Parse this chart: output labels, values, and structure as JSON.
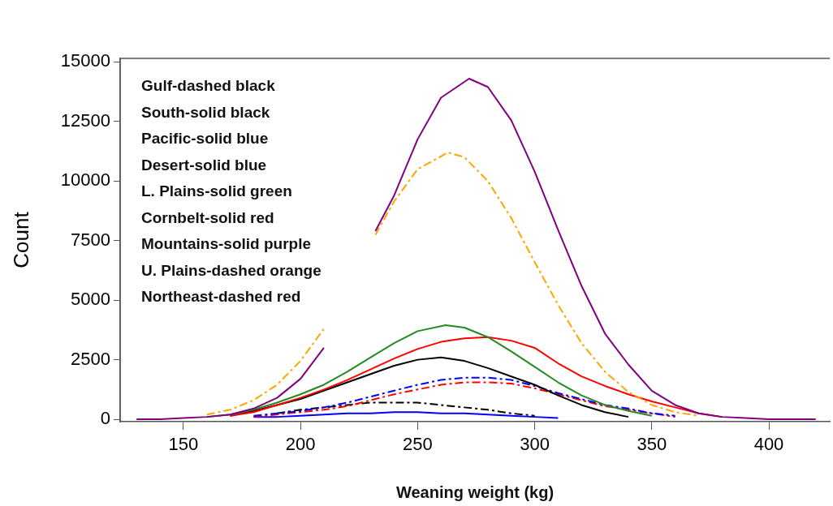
{
  "chart_data": {
    "type": "line",
    "xlabel": "Weaning weight (kg)",
    "ylabel": "Count",
    "series": [
      {
        "color": "#800080",
        "line_style": "solid",
        "x": [
          130,
          140,
          150,
          160,
          170,
          180,
          190,
          200,
          210,
          220,
          232,
          240,
          250,
          260,
          272,
          280,
          290,
          300,
          310,
          320,
          330,
          340,
          350,
          360,
          370,
          380,
          390,
          400,
          410,
          420
        ],
        "values": [
          0,
          0,
          50,
          100,
          200,
          450,
          900,
          1700,
          3000,
          null,
          7900,
          9400,
          11750,
          13500,
          14300,
          13950,
          12550,
          10400,
          7950,
          5600,
          3600,
          2300,
          1200,
          600,
          250,
          100,
          50,
          0,
          0,
          0
        ]
      },
      {
        "color": "#ffa500",
        "line_style": "dashed",
        "x": [
          160,
          170,
          180,
          190,
          200,
          210,
          220,
          232,
          240,
          250,
          263,
          270,
          280,
          290,
          300,
          310,
          320,
          330,
          340,
          350,
          360,
          370
        ],
        "values": [
          200,
          400,
          800,
          1450,
          2450,
          3800,
          null,
          7750,
          9150,
          10500,
          11200,
          11000,
          10000,
          8450,
          6600,
          4800,
          3200,
          2000,
          1150,
          600,
          300,
          150
        ]
      },
      {
        "color": "#228b22",
        "line_style": "solid",
        "x": [
          160,
          170,
          180,
          190,
          200,
          210,
          220,
          230,
          240,
          250,
          262,
          270,
          280,
          290,
          300,
          310,
          320,
          330,
          340,
          350
        ],
        "values": [
          100,
          200,
          400,
          700,
          1050,
          1450,
          2000,
          2600,
          3200,
          3700,
          3950,
          3850,
          3450,
          2850,
          2200,
          1550,
          1000,
          600,
          350,
          150
        ]
      },
      {
        "color": "#ff0000",
        "line_style": "solid",
        "x": [
          170,
          180,
          190,
          200,
          210,
          220,
          230,
          240,
          250,
          260,
          270,
          280,
          290,
          300,
          310,
          320,
          330,
          340,
          350,
          360,
          370,
          380
        ],
        "values": [
          150,
          300,
          600,
          900,
          1250,
          1650,
          2100,
          2550,
          2950,
          3250,
          3400,
          3450,
          3300,
          3000,
          2350,
          1800,
          1400,
          1050,
          750,
          500,
          250,
          100
        ]
      },
      {
        "color": "#000000",
        "line_style": "solid",
        "x": [
          170,
          180,
          190,
          200,
          210,
          220,
          230,
          240,
          250,
          260,
          270,
          280,
          290,
          300,
          310,
          320,
          330,
          340
        ],
        "values": [
          150,
          350,
          600,
          850,
          1200,
          1550,
          1900,
          2250,
          2500,
          2600,
          2450,
          2150,
          1800,
          1450,
          1000,
          600,
          300,
          100
        ]
      },
      {
        "color": "#0000ff",
        "line_style": "dashed",
        "x": [
          180,
          190,
          200,
          210,
          220,
          230,
          240,
          250,
          260,
          270,
          280,
          290,
          300,
          310,
          320,
          330,
          340,
          350,
          360
        ],
        "values": [
          150,
          250,
          350,
          500,
          700,
          950,
          1200,
          1450,
          1650,
          1750,
          1750,
          1650,
          1400,
          1100,
          850,
          600,
          450,
          250,
          150
        ]
      },
      {
        "color": "#ff0000",
        "line_style": "dashed",
        "x": [
          180,
          190,
          200,
          210,
          220,
          230,
          240,
          250,
          260,
          270,
          280,
          290,
          300,
          310,
          320,
          330,
          340,
          350,
          360
        ],
        "values": [
          100,
          200,
          300,
          400,
          550,
          800,
          1050,
          1250,
          1450,
          1550,
          1550,
          1500,
          1300,
          1050,
          800,
          550,
          400,
          250,
          100
        ]
      },
      {
        "color": "#000000",
        "line_style": "dashed",
        "x": [
          190,
          200,
          210,
          220,
          230,
          240,
          250,
          260,
          270,
          280,
          290,
          300
        ],
        "values": [
          250,
          400,
          500,
          600,
          700,
          700,
          700,
          600,
          500,
          400,
          250,
          150
        ]
      },
      {
        "color": "#0000ff",
        "line_style": "solid",
        "x": [
          180,
          190,
          200,
          210,
          220,
          230,
          240,
          250,
          260,
          270,
          280,
          290,
          300,
          310
        ],
        "values": [
          100,
          100,
          150,
          200,
          250,
          250,
          300,
          300,
          250,
          250,
          200,
          150,
          100,
          50
        ]
      }
    ],
    "xlim": [
      123,
      426
    ],
    "xticks": [
      150,
      200,
      250,
      300,
      350,
      400
    ],
    "ylim": [
      -100,
      15150
    ],
    "yticks": [
      0,
      2500,
      5000,
      7500,
      10000,
      12500,
      15000
    ],
    "grid": false,
    "legend": false,
    "marker": "none",
    "annotations": [
      "Gulf-dashed black",
      "South-solid black",
      "Pacific-solid  blue",
      "Desert-solid blue",
      "L. Plains-solid green",
      "Cornbelt-solid red",
      "Mountains-solid purple",
      "U. Plains-dashed orange",
      "Northeast-dashed red"
    ]
  }
}
